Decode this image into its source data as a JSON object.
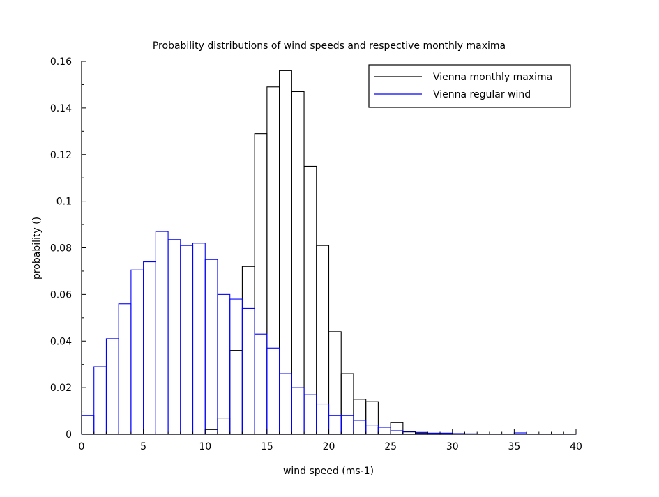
{
  "chart_data": {
    "type": "bar",
    "title": "Probability distributions of wind speeds and respective monthly maxima",
    "xlabel": "wind speed (ms-1)",
    "ylabel": "probability ()",
    "xlim": [
      0,
      40
    ],
    "ylim": [
      0,
      0.16
    ],
    "xticks": [
      "0",
      "5",
      "10",
      "15",
      "20",
      "25",
      "30",
      "35",
      "40"
    ],
    "yticks": [
      "0",
      "0.02",
      "0.04",
      "0.06",
      "0.08",
      "0.1",
      "0.12",
      "0.14",
      "0.16"
    ],
    "bin_width": 1,
    "legend_position": "top-right",
    "grid": false,
    "series": [
      {
        "name": "Vienna monthly maxima",
        "color": "#000000",
        "bins": [
          0,
          1,
          2,
          3,
          4,
          5,
          6,
          7,
          8,
          9,
          10,
          11,
          12,
          13,
          14,
          15,
          16,
          17,
          18,
          19,
          20,
          21,
          22,
          23,
          24,
          25,
          26,
          27,
          28,
          29,
          30,
          31,
          32,
          33,
          34,
          35,
          36,
          37,
          38,
          39
        ],
        "values": [
          0,
          0,
          0,
          0,
          0,
          0,
          0,
          0,
          0,
          0,
          0.002,
          0.007,
          0.036,
          0.072,
          0.129,
          0.149,
          0.156,
          0.147,
          0.115,
          0.081,
          0.044,
          0.026,
          0.015,
          0.014,
          0.003,
          0.005,
          0.001,
          0.0005,
          0.0003,
          0.0003,
          0,
          0,
          0,
          0,
          0,
          0,
          0,
          0,
          0,
          0
        ]
      },
      {
        "name": "Vienna regular wind",
        "color": "#0000ff",
        "bins": [
          0,
          1,
          2,
          3,
          4,
          5,
          6,
          7,
          8,
          9,
          10,
          11,
          12,
          13,
          14,
          15,
          16,
          17,
          18,
          19,
          20,
          21,
          22,
          23,
          24,
          25,
          26,
          27,
          28,
          29,
          30,
          31,
          32,
          33,
          34,
          35,
          36,
          37,
          38,
          39
        ],
        "values": [
          0.008,
          0.029,
          0.041,
          0.056,
          0.0705,
          0.074,
          0.087,
          0.0835,
          0.081,
          0.082,
          0.075,
          0.06,
          0.058,
          0.054,
          0.043,
          0.037,
          0.026,
          0.02,
          0.017,
          0.013,
          0.008,
          0.008,
          0.006,
          0.004,
          0.003,
          0.0015,
          0.0012,
          0.0008,
          0.0005,
          0.0005,
          0.0003,
          0.0002,
          0.0001,
          0.0001,
          0.0001,
          0.0006,
          0.0001,
          0.0001,
          0.0001,
          0.0001
        ]
      }
    ]
  }
}
